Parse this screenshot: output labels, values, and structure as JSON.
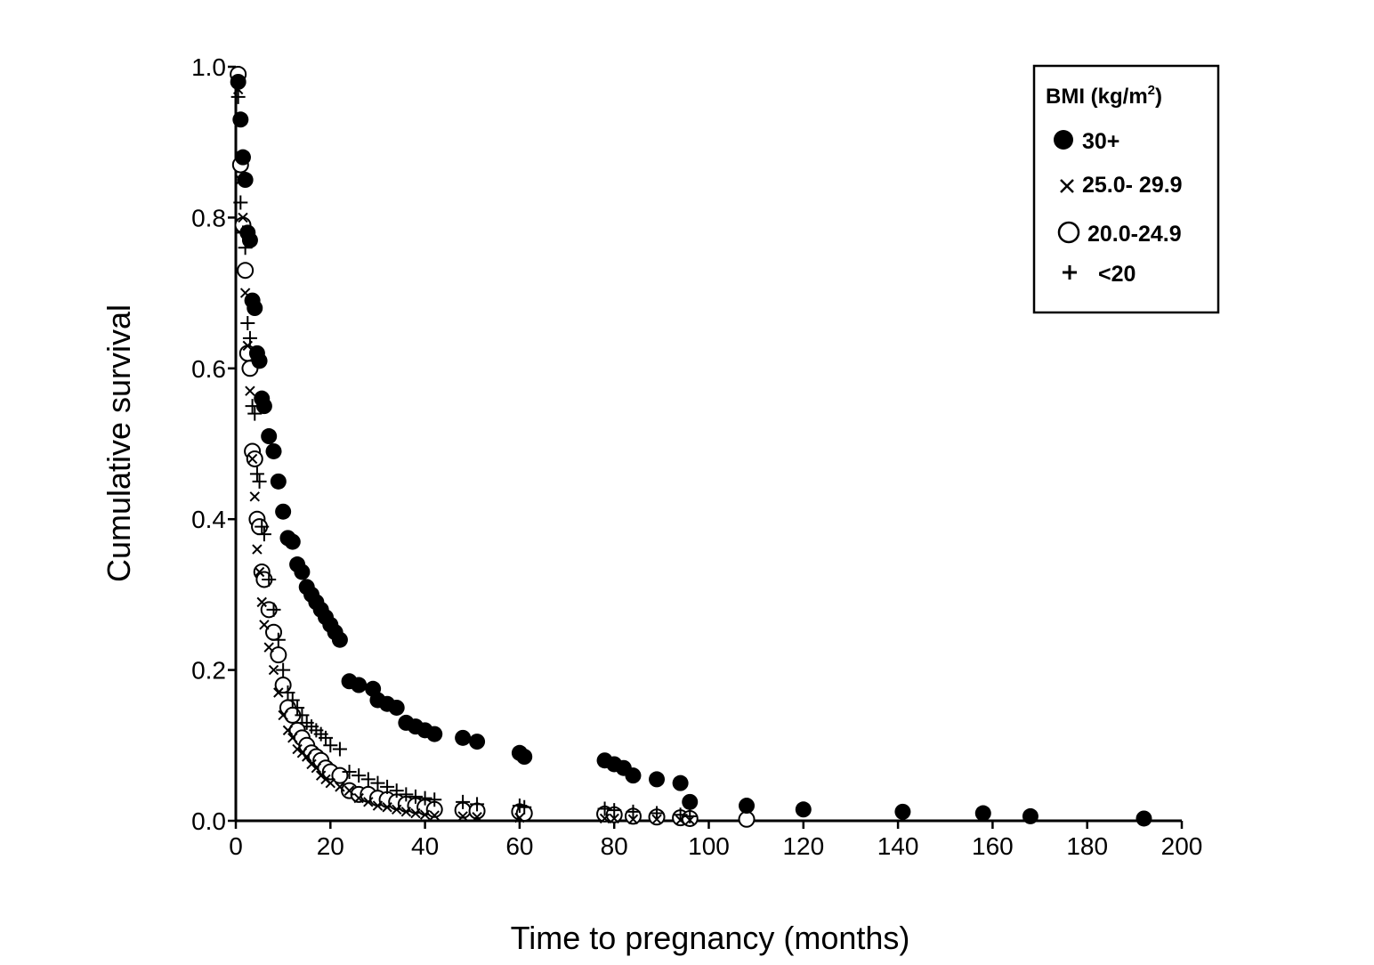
{
  "chart_data": {
    "type": "scatter",
    "title": "",
    "xlabel": "Time to pregnancy (months)",
    "ylabel": "Cumulative survival",
    "xlim": [
      0,
      200
    ],
    "ylim": [
      0,
      1.0
    ],
    "x_ticks": [
      0,
      20,
      40,
      60,
      80,
      100,
      120,
      140,
      160,
      180,
      200
    ],
    "y_ticks": [
      0.0,
      0.2,
      0.4,
      0.6,
      0.8,
      1.0
    ],
    "x_tick_labels": [
      "0",
      "20",
      "40",
      "60",
      "80",
      "100",
      "120",
      "140",
      "160",
      "180",
      "200"
    ],
    "y_tick_labels": [
      "0.0",
      "0.2",
      "0.4",
      "0.6",
      "0.8",
      "1.0"
    ],
    "grid": false,
    "legend": {
      "title": "BMI (kg/m",
      "title_superscript": "2",
      "title_suffix": ")",
      "placement": "top-right"
    },
    "series": [
      {
        "name": "30+",
        "marker": "filled-circle",
        "x": [
          0.5,
          1,
          1.5,
          2,
          2.5,
          3,
          3.5,
          4,
          4.5,
          5,
          5.5,
          6,
          7,
          8,
          9,
          10,
          11,
          12,
          13,
          14,
          15,
          16,
          17,
          18,
          19,
          20,
          21,
          22,
          24,
          26,
          29,
          30,
          32,
          34,
          36,
          38,
          40,
          42,
          48,
          51,
          60,
          61,
          78,
          80,
          82,
          84,
          89,
          94,
          96,
          108,
          120,
          141,
          158,
          168,
          192
        ],
        "y": [
          0.98,
          0.93,
          0.88,
          0.85,
          0.78,
          0.77,
          0.69,
          0.68,
          0.62,
          0.61,
          0.56,
          0.55,
          0.51,
          0.49,
          0.45,
          0.41,
          0.375,
          0.37,
          0.34,
          0.33,
          0.31,
          0.3,
          0.29,
          0.28,
          0.27,
          0.26,
          0.25,
          0.24,
          0.185,
          0.18,
          0.175,
          0.16,
          0.155,
          0.15,
          0.13,
          0.125,
          0.12,
          0.115,
          0.11,
          0.105,
          0.09,
          0.085,
          0.08,
          0.075,
          0.07,
          0.06,
          0.055,
          0.05,
          0.025,
          0.02,
          0.015,
          0.012,
          0.01,
          0.006,
          0.003
        ]
      },
      {
        "name": "25.0- 29.9",
        "marker": "x",
        "x": [
          0.5,
          1,
          1.5,
          2,
          2.5,
          3,
          3.5,
          4,
          4.5,
          5,
          5.5,
          6,
          7,
          8,
          9,
          10,
          11,
          12,
          13,
          14,
          15,
          16,
          17,
          18,
          19,
          20,
          22,
          24,
          26,
          28,
          30,
          32,
          34,
          36,
          38,
          40,
          42,
          48,
          51,
          60,
          78,
          80,
          84,
          89,
          94,
          96
        ],
        "y": [
          0.97,
          0.85,
          0.8,
          0.7,
          0.63,
          0.57,
          0.48,
          0.43,
          0.36,
          0.33,
          0.29,
          0.26,
          0.23,
          0.2,
          0.17,
          0.14,
          0.12,
          0.11,
          0.095,
          0.09,
          0.085,
          0.075,
          0.07,
          0.06,
          0.055,
          0.05,
          0.045,
          0.04,
          0.03,
          0.025,
          0.02,
          0.018,
          0.015,
          0.012,
          0.01,
          0.008,
          0.007,
          0.006,
          0.005,
          0.004,
          0.003,
          0.003,
          0.002,
          0.002,
          0.001,
          0.001
        ]
      },
      {
        "name": "20.0-24.9",
        "marker": "open-circle",
        "x": [
          0.5,
          1,
          1.5,
          2,
          2.5,
          3,
          3.5,
          4,
          4.5,
          5,
          5.5,
          6,
          7,
          8,
          9,
          10,
          11,
          12,
          13,
          14,
          15,
          16,
          17,
          18,
          19,
          20,
          22,
          24,
          26,
          28,
          30,
          32,
          34,
          36,
          38,
          40,
          42,
          48,
          51,
          60,
          61,
          78,
          80,
          84,
          89,
          94,
          96,
          108
        ],
        "y": [
          0.99,
          0.87,
          0.79,
          0.73,
          0.62,
          0.6,
          0.49,
          0.48,
          0.4,
          0.39,
          0.33,
          0.32,
          0.28,
          0.25,
          0.22,
          0.18,
          0.15,
          0.14,
          0.12,
          0.11,
          0.1,
          0.09,
          0.085,
          0.08,
          0.07,
          0.065,
          0.06,
          0.04,
          0.035,
          0.035,
          0.03,
          0.028,
          0.025,
          0.022,
          0.02,
          0.018,
          0.015,
          0.014,
          0.013,
          0.012,
          0.01,
          0.009,
          0.008,
          0.006,
          0.005,
          0.004,
          0.003,
          0.002
        ]
      },
      {
        "name": "<20",
        "marker": "plus",
        "x": [
          0.5,
          1,
          1.5,
          2,
          2.5,
          3,
          3.5,
          4,
          4.5,
          5,
          5.5,
          6,
          7,
          8,
          9,
          10,
          11,
          12,
          13,
          14,
          15,
          16,
          17,
          18,
          19,
          20,
          22,
          24,
          26,
          28,
          30,
          32,
          34,
          36,
          38,
          40,
          42,
          48,
          51,
          60,
          61,
          78,
          80,
          84,
          89,
          94,
          96
        ],
        "y": [
          0.96,
          0.82,
          0.78,
          0.76,
          0.66,
          0.64,
          0.55,
          0.54,
          0.46,
          0.45,
          0.39,
          0.38,
          0.32,
          0.28,
          0.24,
          0.2,
          0.17,
          0.16,
          0.15,
          0.14,
          0.13,
          0.125,
          0.12,
          0.115,
          0.11,
          0.1,
          0.095,
          0.065,
          0.06,
          0.055,
          0.05,
          0.045,
          0.04,
          0.035,
          0.032,
          0.03,
          0.028,
          0.025,
          0.022,
          0.02,
          0.018,
          0.016,
          0.014,
          0.012,
          0.01,
          0.008,
          0.006
        ]
      }
    ]
  }
}
